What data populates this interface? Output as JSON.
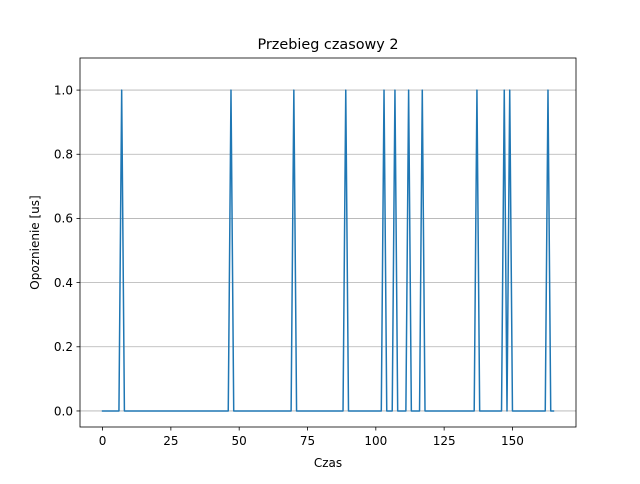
{
  "chart_data": {
    "type": "line",
    "title": "Przebieg czasowy 2",
    "xlabel": "Czas",
    "ylabel": "Opoznienie [us]",
    "xlim": [
      -8.25,
      173.25
    ],
    "ylim": [
      -0.05,
      1.1
    ],
    "xticks": [
      0,
      25,
      50,
      75,
      100,
      125,
      150
    ],
    "xtick_labels": [
      "0",
      "25",
      "50",
      "75",
      "100",
      "125",
      "150"
    ],
    "yticks": [
      0.0,
      0.2,
      0.4,
      0.6,
      0.8,
      1.0
    ],
    "ytick_labels": [
      "0.0",
      "0.2",
      "0.4",
      "0.6",
      "0.8",
      "1.0"
    ],
    "grid": "y",
    "line_color": "#1f77b4",
    "series": [
      {
        "x": [
          0,
          6,
          7,
          8,
          46,
          47,
          48,
          69,
          70,
          71,
          88,
          89,
          90,
          102,
          103,
          104,
          106,
          107,
          108,
          111,
          112,
          113,
          116,
          117,
          118,
          136,
          137,
          138,
          146,
          147,
          148,
          149,
          150,
          162,
          163,
          164,
          165
        ],
        "y": [
          0,
          0,
          1,
          0,
          0,
          1,
          0,
          0,
          1,
          0,
          0,
          1,
          0,
          0,
          1,
          0,
          0,
          1,
          0,
          0,
          1,
          0,
          0,
          1,
          0,
          0,
          1,
          0,
          0,
          1,
          0,
          1,
          0,
          0,
          1,
          0,
          0
        ]
      }
    ]
  }
}
